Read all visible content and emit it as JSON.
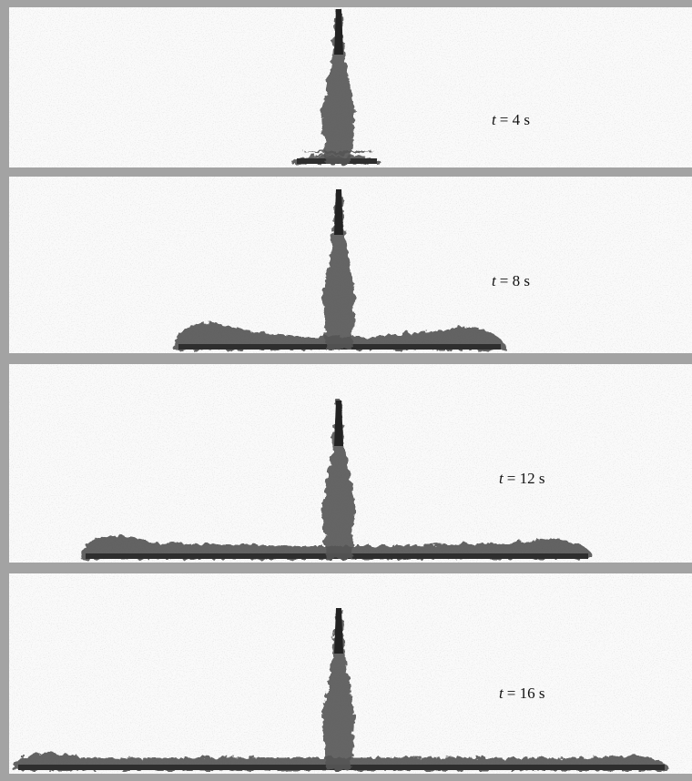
{
  "panels": [
    {
      "label": {
        "symbol": "t",
        "text": "= 4 s"
      }
    },
    {
      "label": {
        "symbol": "t",
        "text": "= 8 s"
      }
    },
    {
      "label": {
        "symbol": "t",
        "text": "= 12 s"
      }
    },
    {
      "label": {
        "symbol": "t",
        "text": "= 16 s"
      }
    }
  ]
}
